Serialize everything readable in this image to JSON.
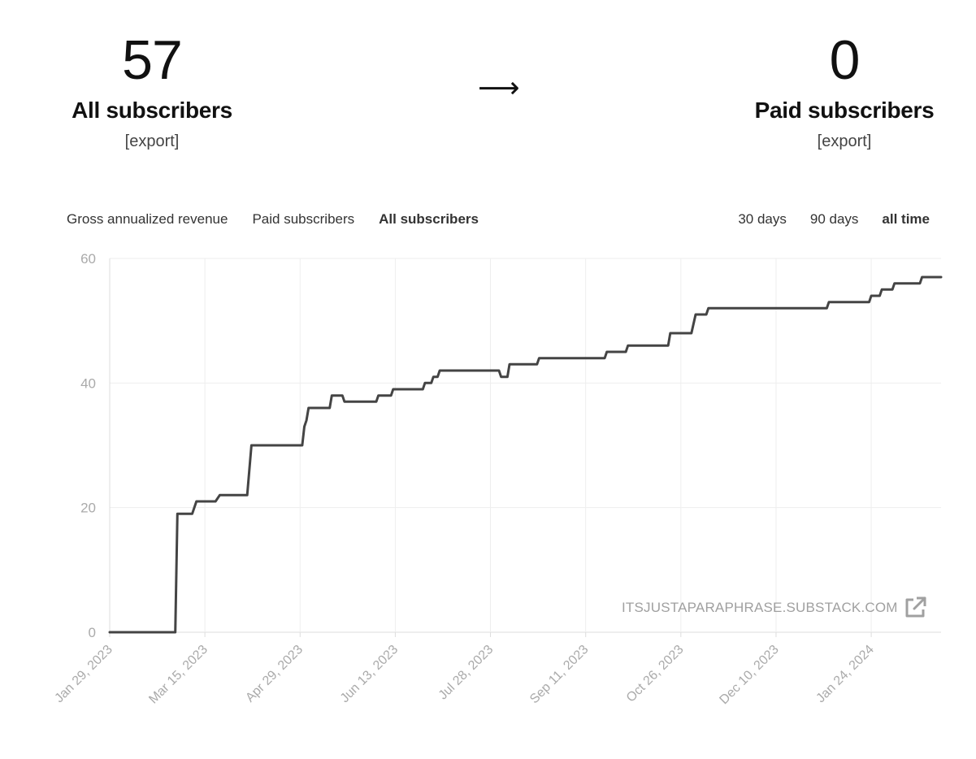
{
  "stats": {
    "left": {
      "value": "57",
      "label": "All subscribers",
      "export": "[export]"
    },
    "arrow": "⟶",
    "right": {
      "value": "0",
      "label": "Paid subscribers",
      "export": "[export]"
    }
  },
  "tabs": [
    {
      "label": "Gross annualized revenue",
      "active": false
    },
    {
      "label": "Paid subscribers",
      "active": false
    },
    {
      "label": "All subscribers",
      "active": true
    }
  ],
  "ranges": [
    {
      "label": "30 days",
      "active": false
    },
    {
      "label": "90 days",
      "active": false
    },
    {
      "label": "all time",
      "active": true
    }
  ],
  "watermark": {
    "text": "ITSJUSTAPARAPHRASE.SUBSTACK.COM",
    "icon": "external-link-icon"
  },
  "colors": {
    "line": "#444444",
    "grid": "#eeeeee",
    "tick": "#aaaaaa",
    "watermark": "#a0a0a0"
  },
  "chart_data": {
    "type": "line",
    "title": "",
    "xlabel": "",
    "ylabel": "",
    "ylim": [
      0,
      60
    ],
    "yticks": [
      0,
      20,
      40,
      60
    ],
    "xlim": [
      "2023-01-29",
      "2024-02-26"
    ],
    "xticks": [
      "Jan 29, 2023",
      "Mar 15, 2023",
      "Apr 29, 2023",
      "Jun 13, 2023",
      "Jul 28, 2023",
      "Sep 11, 2023",
      "Oct 26, 2023",
      "Dec 10, 2023",
      "Jan 24, 2024"
    ],
    "grid": true,
    "legend": "none",
    "series": [
      {
        "points": [
          [
            "2023-01-29",
            0
          ],
          [
            "2023-03-01",
            0
          ],
          [
            "2023-03-02",
            19
          ],
          [
            "2023-03-09",
            19
          ],
          [
            "2023-03-11",
            21
          ],
          [
            "2023-03-20",
            21
          ],
          [
            "2023-03-22",
            22
          ],
          [
            "2023-04-04",
            22
          ],
          [
            "2023-04-06",
            30
          ],
          [
            "2023-04-07",
            30
          ],
          [
            "2023-04-30",
            30
          ],
          [
            "2023-05-01",
            33
          ],
          [
            "2023-05-02",
            34
          ],
          [
            "2023-05-03",
            36
          ],
          [
            "2023-05-13",
            36
          ],
          [
            "2023-05-14",
            38
          ],
          [
            "2023-05-19",
            38
          ],
          [
            "2023-05-20",
            37
          ],
          [
            "2023-06-04",
            37
          ],
          [
            "2023-06-05",
            38
          ],
          [
            "2023-06-11",
            38
          ],
          [
            "2023-06-12",
            39
          ],
          [
            "2023-06-26",
            39
          ],
          [
            "2023-06-27",
            40
          ],
          [
            "2023-06-30",
            40
          ],
          [
            "2023-07-01",
            41
          ],
          [
            "2023-07-03",
            41
          ],
          [
            "2023-07-04",
            42
          ],
          [
            "2023-08-01",
            42
          ],
          [
            "2023-08-02",
            41
          ],
          [
            "2023-08-05",
            41
          ],
          [
            "2023-08-06",
            43
          ],
          [
            "2023-08-19",
            43
          ],
          [
            "2023-08-20",
            44
          ],
          [
            "2023-09-20",
            44
          ],
          [
            "2023-09-21",
            45
          ],
          [
            "2023-09-30",
            45
          ],
          [
            "2023-10-01",
            46
          ],
          [
            "2023-10-20",
            46
          ],
          [
            "2023-10-21",
            48
          ],
          [
            "2023-10-31",
            48
          ],
          [
            "2023-11-02",
            51
          ],
          [
            "2023-11-07",
            51
          ],
          [
            "2023-11-08",
            52
          ],
          [
            "2024-01-03",
            52
          ],
          [
            "2024-01-04",
            53
          ],
          [
            "2024-01-23",
            53
          ],
          [
            "2024-01-24",
            54
          ],
          [
            "2024-01-28",
            54
          ],
          [
            "2024-01-29",
            55
          ],
          [
            "2024-02-03",
            55
          ],
          [
            "2024-02-04",
            56
          ],
          [
            "2024-02-16",
            56
          ],
          [
            "2024-02-17",
            57
          ],
          [
            "2024-02-26",
            57
          ]
        ]
      }
    ]
  }
}
